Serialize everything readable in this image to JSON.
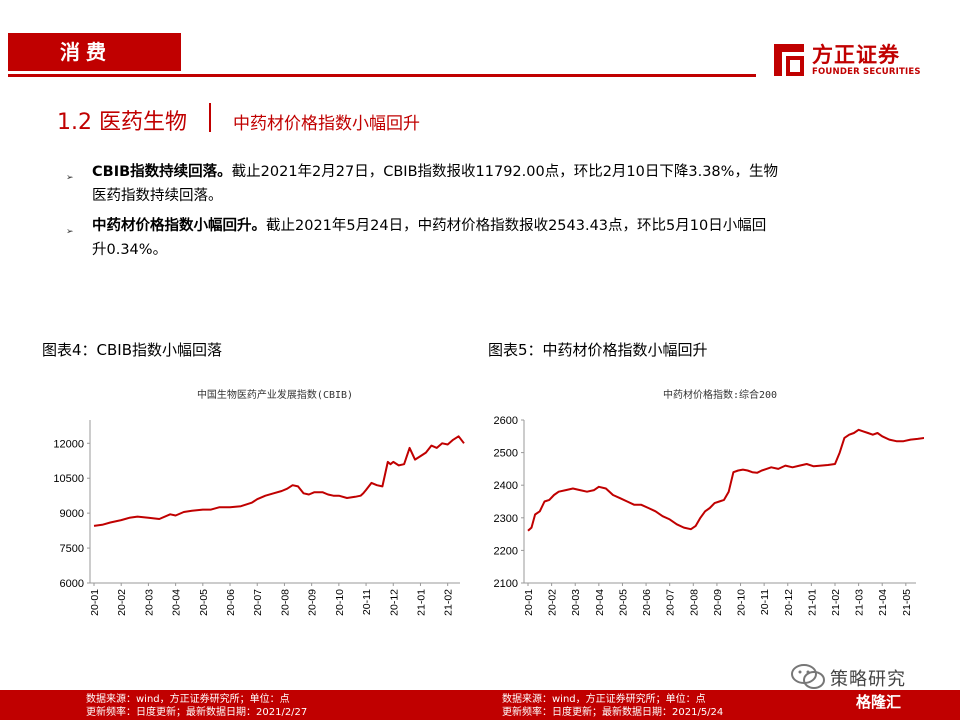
{
  "section": {
    "label": "消费"
  },
  "brand": {
    "name": "方正证券",
    "sub": "FOUNDER SECURITIES"
  },
  "heading": {
    "main": "1.2 医药生物",
    "sub": "中药材价格指数小幅回升"
  },
  "bullets": [
    {
      "bold": "CBIB指数持续回落。",
      "line1": "截止2021年2月27日，CBIB指数报收11792.00点，环比2月10日下降3.38%，生物",
      "line2": "医药指数持续回落。"
    },
    {
      "bold": "中药材价格指数小幅回升。",
      "line1": "截止2021年5月24日，中药材价格指数报收2543.43点，环比5月10日小幅回",
      "line2": "升0.34%。"
    }
  ],
  "figures": [
    {
      "label": "图表4：CBIB指数小幅回落",
      "source": "数据来源：wind，方正证券研究所；单位：点",
      "update": "更新频率：日度更新；最新数据日期：2021/2/27"
    },
    {
      "label": "图表5：中药材价格指数小幅回升",
      "source": "数据来源：wind，方正证券研究所；单位：点",
      "update": "更新频率：日度更新；最新数据日期：2021/5/24"
    }
  ],
  "watermark": {
    "text": "策略研究",
    "brand": "格隆汇"
  },
  "colors": {
    "accent": "#c00000",
    "line": "#c00000"
  },
  "chart_data": [
    {
      "type": "line",
      "title": "中国生物医药产业发展指数(CBIB)",
      "categories": [
        "20-01",
        "20-02",
        "20-03",
        "20-04",
        "20-05",
        "20-06",
        "20-07",
        "20-08",
        "20-09",
        "20-10",
        "20-11",
        "20-12",
        "21-01",
        "21-02"
      ],
      "yticks": [
        "6000",
        "7500",
        "9000",
        "10500",
        "12000"
      ],
      "ylim": [
        6000,
        13000
      ],
      "grid": false,
      "x": [
        0,
        0.3,
        0.6,
        1.0,
        1.3,
        1.6,
        2.0,
        2.4,
        2.8,
        3.0,
        3.3,
        3.6,
        4.0,
        4.3,
        4.6,
        5.0,
        5.4,
        5.8,
        6.0,
        6.3,
        6.6,
        6.9,
        7.1,
        7.3,
        7.5,
        7.7,
        7.9,
        8.1,
        8.4,
        8.6,
        8.8,
        9.0,
        9.3,
        9.6,
        9.8,
        9.9,
        10.0,
        10.2,
        10.4,
        10.6,
        10.8,
        10.9,
        11.0,
        11.2,
        11.4,
        11.6,
        11.8,
        12.0,
        12.2,
        12.4,
        12.6,
        12.8,
        13.0,
        13.2,
        13.4,
        13.6
      ],
      "y": [
        8450,
        8500,
        8600,
        8700,
        8800,
        8850,
        8800,
        8750,
        8950,
        8900,
        9050,
        9100,
        9150,
        9150,
        9250,
        9250,
        9300,
        9450,
        9600,
        9750,
        9850,
        9950,
        10050,
        10200,
        10150,
        9850,
        9800,
        9900,
        9900,
        9800,
        9750,
        9750,
        9650,
        9700,
        9750,
        9850,
        10000,
        10300,
        10200,
        10150,
        11200,
        11100,
        11200,
        11050,
        11100,
        11800,
        11300,
        11450,
        11600,
        11900,
        11800,
        12000,
        11950,
        12150,
        12300,
        12000
      ]
    },
    {
      "type": "line",
      "title": "中药材价格指数:综合200",
      "categories": [
        "20-01",
        "20-02",
        "20-03",
        "20-04",
        "20-05",
        "20-06",
        "20-07",
        "20-08",
        "20-09",
        "20-10",
        "20-11",
        "20-12",
        "21-01",
        "21-02",
        "21-03",
        "21-04",
        "21-05"
      ],
      "yticks": [
        "2100",
        "2200",
        "2300",
        "2400",
        "2500",
        "2600"
      ],
      "ylim": [
        2100,
        2600
      ],
      "grid": false,
      "x": [
        0,
        0.15,
        0.3,
        0.5,
        0.7,
        0.9,
        1.1,
        1.3,
        1.6,
        1.9,
        2.2,
        2.5,
        2.8,
        3.0,
        3.3,
        3.6,
        3.9,
        4.2,
        4.5,
        4.8,
        5.1,
        5.4,
        5.7,
        6.0,
        6.3,
        6.6,
        6.9,
        7.1,
        7.3,
        7.5,
        7.7,
        7.9,
        8.1,
        8.3,
        8.5,
        8.7,
        8.9,
        9.1,
        9.3,
        9.5,
        9.7,
        9.9,
        10.1,
        10.3,
        10.6,
        10.9,
        11.2,
        11.5,
        11.8,
        12.1,
        12.4,
        12.7,
        13.0,
        13.2,
        13.4,
        13.6,
        13.8,
        14.0,
        14.2,
        14.4,
        14.6,
        14.8,
        15.0,
        15.3,
        15.6,
        15.9,
        16.2,
        16.5,
        16.8,
        17.0
      ],
      "y": [
        2260,
        2270,
        2310,
        2320,
        2350,
        2355,
        2370,
        2380,
        2385,
        2390,
        2385,
        2380,
        2385,
        2395,
        2390,
        2370,
        2360,
        2350,
        2340,
        2340,
        2330,
        2320,
        2305,
        2295,
        2280,
        2270,
        2265,
        2275,
        2300,
        2320,
        2330,
        2345,
        2350,
        2355,
        2380,
        2440,
        2445,
        2448,
        2445,
        2440,
        2438,
        2445,
        2450,
        2455,
        2450,
        2460,
        2455,
        2460,
        2465,
        2458,
        2460,
        2462,
        2465,
        2500,
        2545,
        2555,
        2560,
        2570,
        2565,
        2560,
        2555,
        2560,
        2550,
        2540,
        2535,
        2535,
        2540,
        2542,
        2545,
        2543
      ]
    }
  ]
}
